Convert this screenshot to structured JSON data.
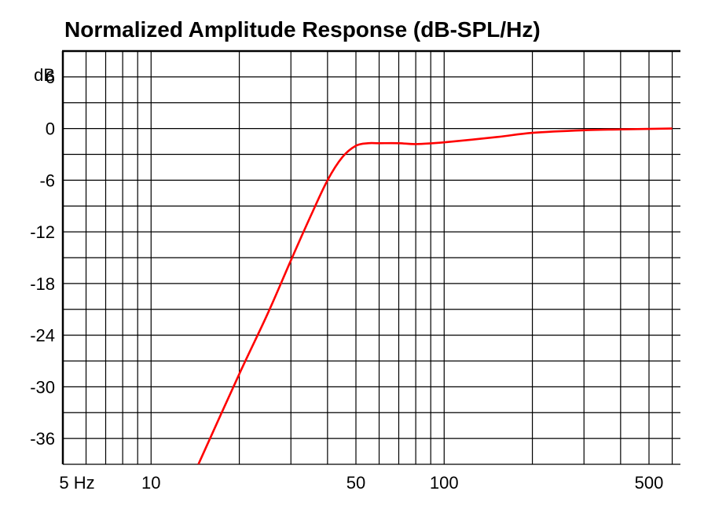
{
  "chart_data": {
    "type": "line",
    "title": "Normalized Amplitude Response (dB-SPL/Hz)",
    "y_unit_label": "dB",
    "x_scale": "log",
    "xlim": [
      5,
      600
    ],
    "ylim": [
      -39,
      9
    ],
    "x_ticks": [
      {
        "value": 5,
        "label": "5 Hz"
      },
      {
        "value": 10,
        "label": "10"
      },
      {
        "value": 50,
        "label": "50"
      },
      {
        "value": 100,
        "label": "100"
      },
      {
        "value": 500,
        "label": "500"
      }
    ],
    "y_ticks": [
      {
        "value": 6,
        "label": "6"
      },
      {
        "value": 0,
        "label": "0"
      },
      {
        "value": -6,
        "label": "-6"
      },
      {
        "value": -12,
        "label": "-12"
      },
      {
        "value": -18,
        "label": "-18"
      },
      {
        "value": -24,
        "label": "-24"
      },
      {
        "value": -30,
        "label": "-30"
      },
      {
        "value": -36,
        "label": "-36"
      }
    ],
    "grid": true,
    "series": [
      {
        "color": "#ff0000",
        "x": [
          14.5,
          20,
          25,
          30,
          35,
          40,
          45,
          50,
          55,
          60,
          70,
          80,
          100,
          150,
          200,
          300,
          400,
          600
        ],
        "y": [
          -39,
          -28.5,
          -21.5,
          -15.3,
          -10.2,
          -6.0,
          -3.3,
          -2.0,
          -1.7,
          -1.7,
          -1.7,
          -1.8,
          -1.6,
          -1.0,
          -0.5,
          -0.2,
          -0.1,
          0
        ]
      }
    ],
    "colors": {
      "line": "#ff0000",
      "grid": "#000000"
    }
  }
}
